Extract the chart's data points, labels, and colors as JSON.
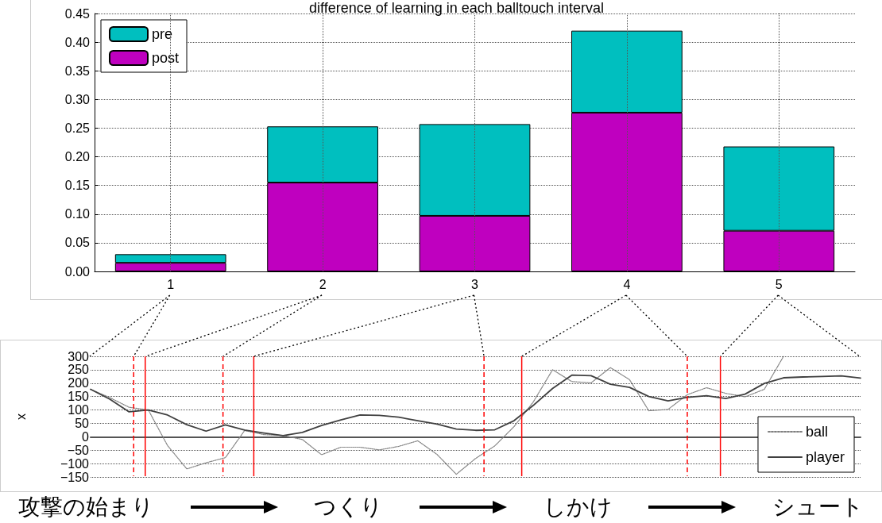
{
  "chart_data": [
    {
      "type": "bar",
      "title": "difference of learning in each balltouch interval",
      "categories": [
        "1",
        "2",
        "3",
        "4",
        "5"
      ],
      "stacked": true,
      "series": [
        {
          "name": "post",
          "color": "#bf00bf",
          "values": [
            0.015,
            0.155,
            0.097,
            0.277,
            0.071
          ]
        },
        {
          "name": "pre",
          "color": "#00bfbf",
          "values": [
            0.015,
            0.098,
            0.16,
            0.143,
            0.147
          ]
        }
      ],
      "ylim": [
        0,
        0.45
      ],
      "yticks": [
        {
          "value": 0,
          "label": "0.00"
        },
        {
          "value": 0.05,
          "label": "0.05"
        },
        {
          "value": 0.1,
          "label": "0.10"
        },
        {
          "value": 0.15,
          "label": "0.15"
        },
        {
          "value": 0.2,
          "label": "0.20"
        },
        {
          "value": 0.25,
          "label": "0.25"
        },
        {
          "value": 0.3,
          "label": "0.30"
        },
        {
          "value": 0.35,
          "label": "0.35"
        },
        {
          "value": 0.4,
          "label": "0.40"
        },
        {
          "value": 0.45,
          "label": "0.45"
        }
      ],
      "grid": true,
      "legend": "top left"
    },
    {
      "type": "line",
      "ylabel": "x",
      "marker": "none",
      "grid": "y",
      "legend": "bottom right",
      "tick_labels": "y",
      "categories": [
        null,
        null,
        null,
        null,
        null,
        null,
        null,
        null,
        null,
        null,
        null,
        null,
        null,
        null,
        null,
        null,
        null,
        null,
        null,
        null,
        null,
        null,
        null,
        null,
        null,
        null,
        null,
        null,
        null,
        null,
        null,
        null,
        null,
        null,
        null,
        null,
        null,
        null,
        null,
        null,
        null
      ],
      "ylim": [
        -150,
        300
      ],
      "yticks": [
        {
          "value": -150,
          "label": "−150"
        },
        {
          "value": -100,
          "label": "−100"
        },
        {
          "value": -50,
          "label": "−50"
        },
        0,
        50,
        100,
        150,
        200,
        250,
        300
      ],
      "series": [
        {
          "name": "ball",
          "color": "#808080",
          "line_style": "dotted",
          "values": [
            177,
            146,
            110,
            100,
            -33,
            -120,
            -97,
            -78,
            23,
            8,
            5,
            -10,
            -67,
            -39,
            -39,
            -49,
            -36,
            -15,
            -66,
            -140,
            -81,
            -34,
            38,
            130,
            250,
            206,
            201,
            258,
            213,
            97,
            102,
            157,
            183,
            162,
            149,
            177,
            300,
            null,
            null,
            null,
            null
          ]
        },
        {
          "name": "player",
          "color": "#404040",
          "line_style": "solid",
          "values": [
            177,
            140,
            93,
            100,
            81,
            45,
            21,
            44,
            25,
            14,
            4,
            16,
            42,
            63,
            81,
            80,
            73,
            60,
            47,
            29,
            24,
            26,
            60,
            117,
            180,
            230,
            228,
            196,
            184,
            150,
            134,
            147,
            153,
            143,
            159,
            199,
            220,
            223,
            225,
            227,
            219
          ]
        }
      ],
      "annotations": [
        "攻撃の始まり",
        "つくり",
        "しかけ",
        "シュート"
      ]
    }
  ]
}
